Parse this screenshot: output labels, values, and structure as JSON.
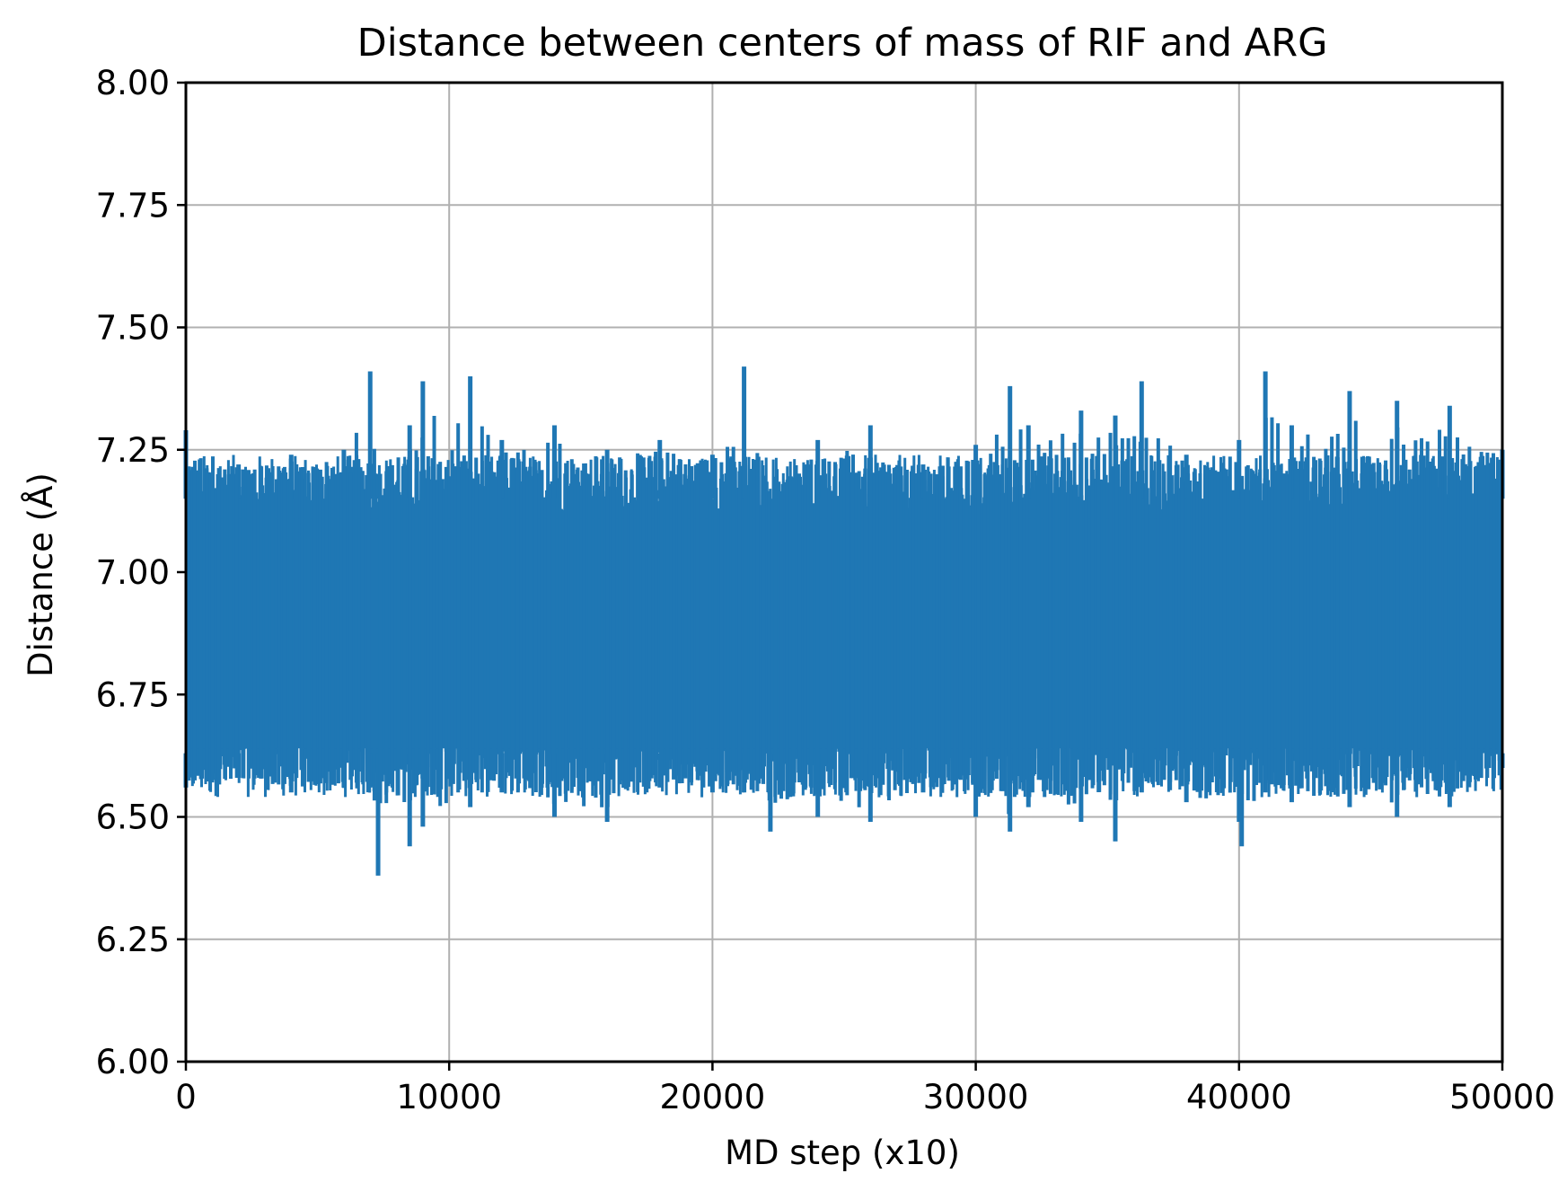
{
  "chart_data": {
    "type": "line",
    "title": "Distance between centers of mass of RIF and ARG",
    "xlabel": "MD step (x10)",
    "ylabel": "Distance (Å)",
    "xlim": [
      0,
      50000
    ],
    "ylim": [
      6.0,
      8.0
    ],
    "xticks": [
      0,
      10000,
      20000,
      30000,
      40000,
      50000
    ],
    "xtick_labels": [
      "0",
      "10000",
      "20000",
      "30000",
      "40000",
      "50000"
    ],
    "yticks": [
      6.0,
      6.25,
      6.5,
      6.75,
      7.0,
      7.25,
      7.5,
      7.75,
      8.0
    ],
    "ytick_labels": [
      "6.00",
      "6.25",
      "6.50",
      "6.75",
      "7.00",
      "7.25",
      "7.50",
      "7.75",
      "8.00"
    ],
    "grid": true,
    "legend": "none",
    "series": [
      {
        "color": "#1f77b4",
        "description_stats": {
          "mean": 6.88,
          "typical_band": [
            6.58,
            7.2
          ]
        },
        "x": [
          0,
          2000,
          4000,
          6000,
          7000,
          7300,
          8500,
          9000,
          10800,
          12000,
          14000,
          16000,
          18000,
          20000,
          21200,
          22200,
          24000,
          26000,
          28000,
          30000,
          31300,
          32000,
          34000,
          35300,
          36300,
          38000,
          40000,
          40100,
          41000,
          42000,
          44200,
          46000,
          48000,
          50000
        ],
        "upper_envelope": [
          7.29,
          7.22,
          7.24,
          7.25,
          7.41,
          7.2,
          7.3,
          7.39,
          7.4,
          7.27,
          7.3,
          7.25,
          7.27,
          7.24,
          7.42,
          7.11,
          7.27,
          7.3,
          7.22,
          7.26,
          7.38,
          7.3,
          7.33,
          7.32,
          7.39,
          7.24,
          7.27,
          7.17,
          7.41,
          7.3,
          7.37,
          7.35,
          7.34,
          7.25
        ],
        "lower_envelope": [
          6.56,
          6.58,
          6.55,
          6.56,
          6.56,
          6.38,
          6.44,
          6.48,
          6.52,
          6.55,
          6.5,
          6.49,
          6.56,
          6.55,
          6.55,
          6.47,
          6.5,
          6.49,
          6.55,
          6.5,
          6.47,
          6.52,
          6.49,
          6.45,
          6.55,
          6.53,
          6.49,
          6.44,
          6.55,
          6.53,
          6.52,
          6.5,
          6.52,
          6.6
        ]
      }
    ]
  }
}
